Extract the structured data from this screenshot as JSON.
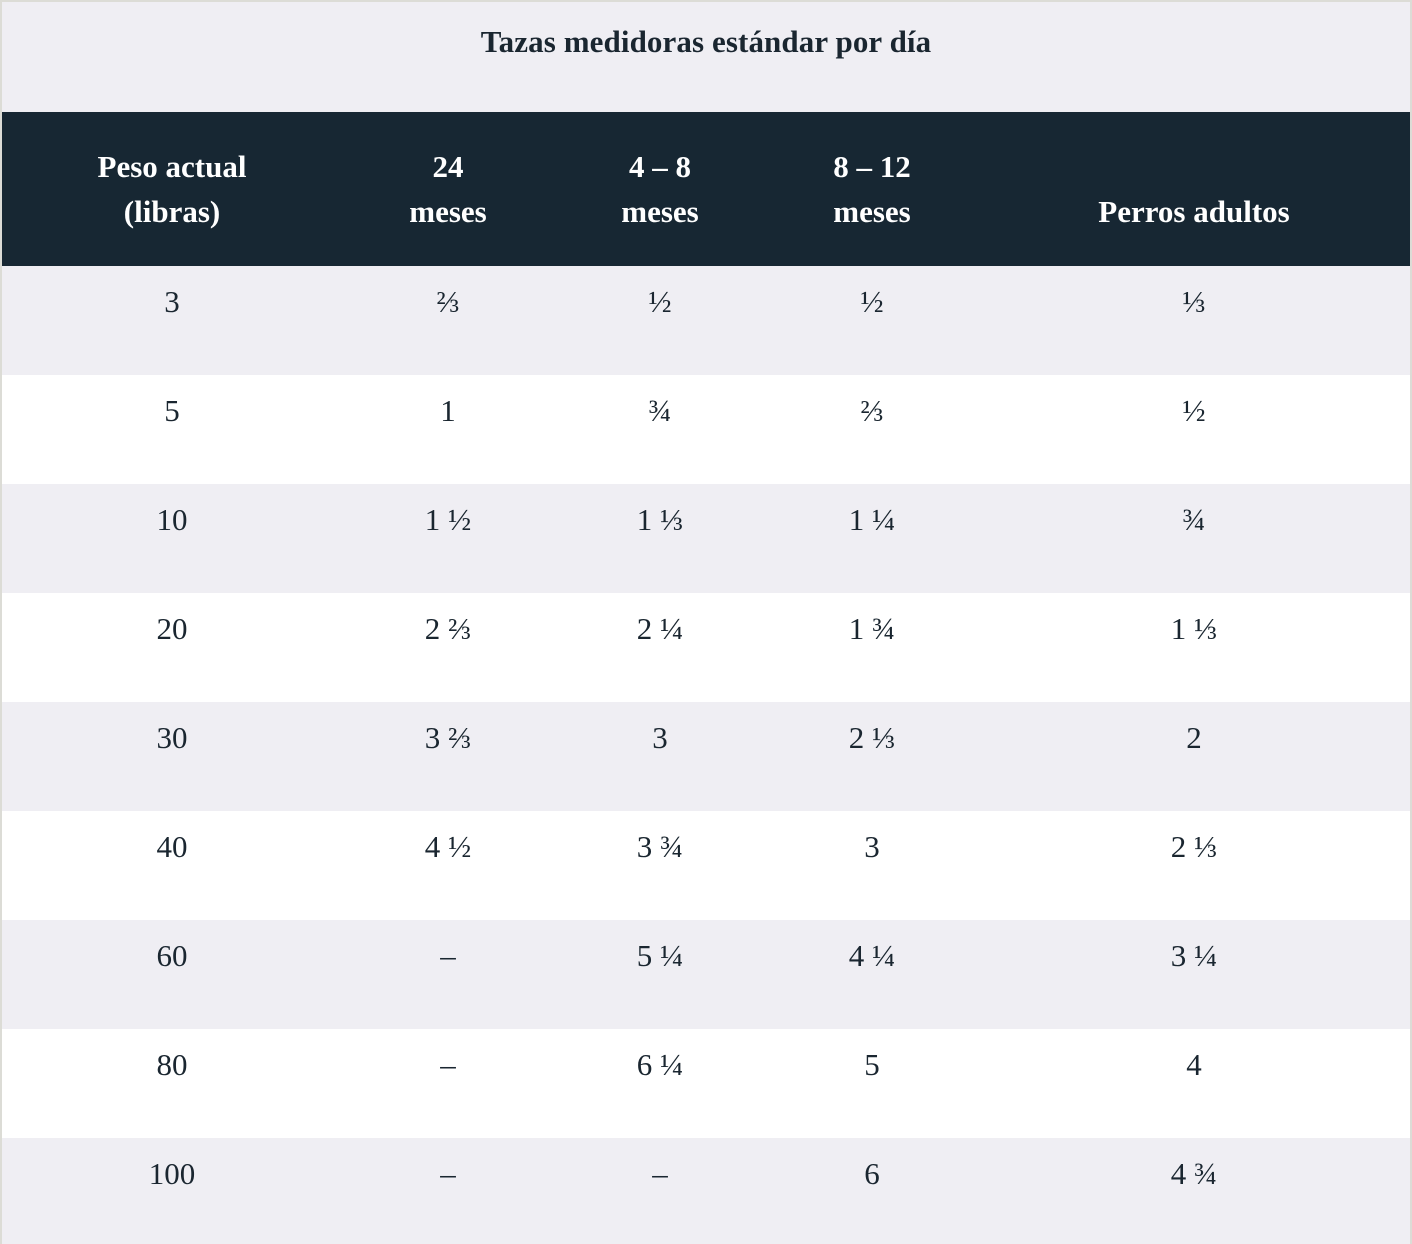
{
  "caption": "Tazas medidoras estándar por día",
  "headers": [
    {
      "line1": "Peso actual",
      "line2": "(libras)"
    },
    {
      "line1": "24",
      "line2": "meses"
    },
    {
      "line1": "4 – 8",
      "line2": "meses"
    },
    {
      "line1": "8 – 12",
      "line2": "meses"
    },
    {
      "line1": "",
      "line2": "Perros adultos"
    }
  ],
  "rows": [
    [
      "3",
      "⅔",
      "½",
      "½",
      "⅓"
    ],
    [
      "5",
      "1",
      "¾",
      "⅔",
      "½"
    ],
    [
      "10",
      "1 ½",
      "1 ⅓",
      "1 ¼",
      "¾"
    ],
    [
      "20",
      "2 ⅔",
      "2 ¼",
      "1 ¾",
      "1 ⅓"
    ],
    [
      "30",
      "3 ⅔",
      "3",
      "2 ⅓",
      "2"
    ],
    [
      "40",
      "4 ½",
      "3 ¾",
      "3",
      "2 ⅓"
    ],
    [
      "60",
      "–",
      "5 ¼",
      "4 ¼",
      "3 ¼"
    ],
    [
      "80",
      "–",
      "6 ¼",
      "5",
      "4"
    ],
    [
      "100",
      "–",
      "–",
      "6",
      "4 ¾"
    ]
  ]
}
